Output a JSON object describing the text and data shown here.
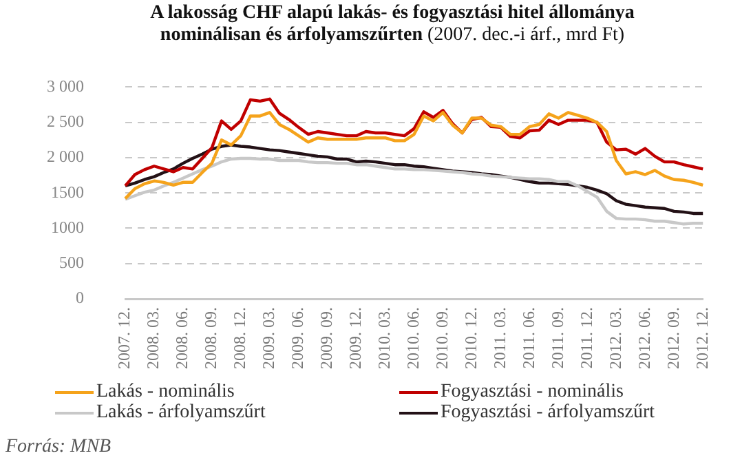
{
  "chart_data": {
    "type": "line",
    "title": "A lakosság  CHF alapú lakás- és fogyasztási hitel állománya nominálisan és árfolyamszűrten",
    "subtitle": "(2007. dec.-i árf., mrd Ft)",
    "categories": [
      "2007. 12.",
      null,
      null,
      "2008. 03.",
      null,
      null,
      "2008. 06.",
      null,
      null,
      "2008. 09.",
      null,
      null,
      "2008. 12.",
      null,
      null,
      "2009. 03.",
      null,
      null,
      "2009. 06.",
      null,
      null,
      "2009. 09.",
      null,
      null,
      "2009. 12.",
      null,
      null,
      "2010. 03.",
      null,
      null,
      "2010. 06.",
      null,
      null,
      "2010. 09.",
      null,
      null,
      "2010. 12.",
      null,
      null,
      "2011. 03.",
      null,
      null,
      "2011. 06.",
      null,
      null,
      "2011. 09.",
      null,
      null,
      "2011. 12.",
      null,
      null,
      "2012. 03.",
      null,
      null,
      "2012. 06.",
      null,
      null,
      "2012. 09.",
      null,
      null,
      "2012. 12."
    ],
    "series": [
      {
        "name": "Lakás - nominális",
        "color": "#f5a31b",
        "values": [
          1420,
          1560,
          1630,
          1670,
          1650,
          1610,
          1650,
          1650,
          1790,
          1920,
          2250,
          2180,
          2310,
          2590,
          2590,
          2640,
          2470,
          2400,
          2310,
          2220,
          2280,
          2260,
          2260,
          2260,
          2260,
          2280,
          2280,
          2280,
          2240,
          2240,
          2330,
          2590,
          2520,
          2640,
          2460,
          2350,
          2560,
          2560,
          2460,
          2440,
          2330,
          2330,
          2440,
          2470,
          2620,
          2560,
          2640,
          2600,
          2560,
          2500,
          2370,
          1960,
          1770,
          1800,
          1760,
          1820,
          1740,
          1690,
          1680,
          1650,
          1610
        ]
      },
      {
        "name": "Fogyasztási - nominális",
        "color": "#c00000",
        "values": [
          1600,
          1760,
          1830,
          1880,
          1840,
          1800,
          1860,
          1840,
          1990,
          2140,
          2520,
          2400,
          2520,
          2820,
          2800,
          2830,
          2630,
          2540,
          2430,
          2330,
          2370,
          2350,
          2330,
          2310,
          2310,
          2370,
          2350,
          2350,
          2330,
          2310,
          2410,
          2650,
          2570,
          2670,
          2480,
          2350,
          2540,
          2570,
          2440,
          2430,
          2300,
          2280,
          2380,
          2390,
          2530,
          2470,
          2530,
          2530,
          2530,
          2500,
          2220,
          2110,
          2120,
          2050,
          2130,
          2020,
          1940,
          1940,
          1900,
          1870,
          1840
        ]
      },
      {
        "name": "Lakás - árfolyamszűrt",
        "color": "#c8c8c8",
        "values": [
          1410,
          1460,
          1510,
          1540,
          1600,
          1650,
          1710,
          1770,
          1830,
          1880,
          1940,
          1980,
          1990,
          1990,
          1980,
          1980,
          1960,
          1960,
          1960,
          1940,
          1930,
          1930,
          1920,
          1920,
          1900,
          1900,
          1880,
          1860,
          1840,
          1840,
          1830,
          1830,
          1820,
          1810,
          1800,
          1790,
          1770,
          1760,
          1740,
          1730,
          1720,
          1710,
          1700,
          1700,
          1690,
          1660,
          1660,
          1600,
          1520,
          1440,
          1240,
          1140,
          1130,
          1130,
          1120,
          1100,
          1100,
          1080,
          1060,
          1070,
          1070
        ]
      },
      {
        "name": "Fogyasztási - árfolyamszűrt",
        "color": "#231116",
        "values": [
          1600,
          1640,
          1690,
          1730,
          1790,
          1840,
          1920,
          1990,
          2050,
          2120,
          2160,
          2180,
          2160,
          2150,
          2130,
          2110,
          2100,
          2080,
          2060,
          2040,
          2020,
          2010,
          1980,
          1980,
          1940,
          1950,
          1940,
          1920,
          1900,
          1900,
          1880,
          1870,
          1850,
          1830,
          1810,
          1800,
          1790,
          1770,
          1760,
          1740,
          1720,
          1690,
          1660,
          1640,
          1640,
          1630,
          1620,
          1600,
          1580,
          1540,
          1490,
          1390,
          1340,
          1320,
          1300,
          1290,
          1280,
          1240,
          1230,
          1210,
          1210
        ]
      }
    ],
    "ylim": [
      0,
      3000
    ],
    "yticks": [
      0,
      500,
      1000,
      1500,
      {
        "value": 2000,
        "label": "2 000"
      },
      {
        "value": 2500,
        "label": "2 500"
      },
      {
        "value": 3000,
        "label": "3 000"
      }
    ],
    "grid": "y",
    "legend": "bottom",
    "marker": "none",
    "line_style": "solid",
    "annotations": [
      "Forrás: MNB"
    ]
  }
}
